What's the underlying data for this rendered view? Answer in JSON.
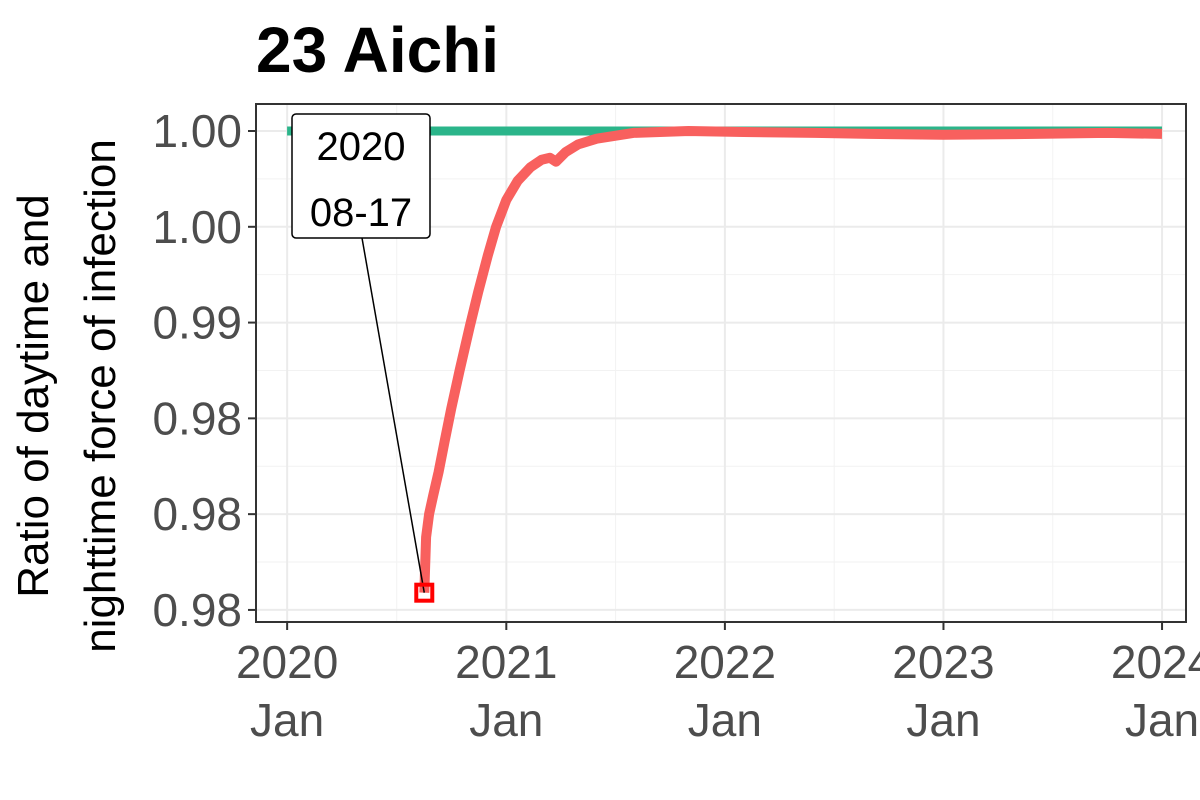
{
  "chart_data": {
    "type": "line",
    "title": "23 Aichi",
    "ylabel_line1": "Ratio of daytime and",
    "ylabel_line2": "nighttime force of infection",
    "xlabel": "",
    "x_ticks": [
      {
        "date": "2020-01-01",
        "year": "2020",
        "month": "Jan"
      },
      {
        "date": "2021-01-01",
        "year": "2021",
        "month": "Jan"
      },
      {
        "date": "2022-01-01",
        "year": "2022",
        "month": "Jan"
      },
      {
        "date": "2023-01-01",
        "year": "2023",
        "month": "Jan"
      },
      {
        "date": "2024-01-01",
        "year": "2024",
        "month": "Jan"
      }
    ],
    "y_ticks": [
      {
        "value": 0.975,
        "label": "0.98"
      },
      {
        "value": 0.98,
        "label": "0.98"
      },
      {
        "value": 0.985,
        "label": "0.98"
      },
      {
        "value": 0.99,
        "label": "0.99"
      },
      {
        "value": 0.995,
        "label": "1.00"
      },
      {
        "value": 1.0,
        "label": "1.00"
      }
    ],
    "xlim": [
      "2019-11-10",
      "2024-02-10"
    ],
    "ylim": [
      0.97437,
      1.00141
    ],
    "grid": true,
    "series": [
      {
        "color": "#2BB58A",
        "points": [
          [
            "2020-01-01",
            1.0
          ],
          [
            "2024-01-01",
            1.0
          ]
        ]
      },
      {
        "color": "#F8605E",
        "points": [
          [
            "2020-08-17",
            0.9759
          ],
          [
            "2020-08-20",
            0.9788
          ],
          [
            "2020-08-25",
            0.98
          ],
          [
            "2020-09-01",
            0.981
          ],
          [
            "2020-09-10",
            0.9822
          ],
          [
            "2020-09-20",
            0.9838
          ],
          [
            "2020-10-01",
            0.9855
          ],
          [
            "2020-10-15",
            0.9875
          ],
          [
            "2020-11-01",
            0.9898
          ],
          [
            "2020-11-15",
            0.9916
          ],
          [
            "2020-12-01",
            0.9935
          ],
          [
            "2020-12-15",
            0.995
          ],
          [
            "2021-01-01",
            0.9964
          ],
          [
            "2021-01-20",
            0.9974
          ],
          [
            "2021-02-10",
            0.9981
          ],
          [
            "2021-03-01",
            0.9985
          ],
          [
            "2021-03-15",
            0.9986
          ],
          [
            "2021-03-25",
            0.9984
          ],
          [
            "2021-04-10",
            0.9989
          ],
          [
            "2021-05-01",
            0.9993
          ],
          [
            "2021-06-01",
            0.9996
          ],
          [
            "2021-08-01",
            0.9999
          ],
          [
            "2021-11-01",
            1.0
          ],
          [
            "2022-02-01",
            0.99995
          ],
          [
            "2022-06-01",
            0.9999
          ],
          [
            "2022-09-01",
            0.99985
          ],
          [
            "2023-01-01",
            0.9998
          ],
          [
            "2023-06-01",
            0.99985
          ],
          [
            "2023-10-01",
            0.9999
          ],
          [
            "2024-01-01",
            0.99985
          ]
        ]
      }
    ],
    "annotation": {
      "date": "2020-08-17",
      "value": 0.9759,
      "line1": "2020",
      "line2": "08-17",
      "marker_color": "#FF0000"
    }
  }
}
